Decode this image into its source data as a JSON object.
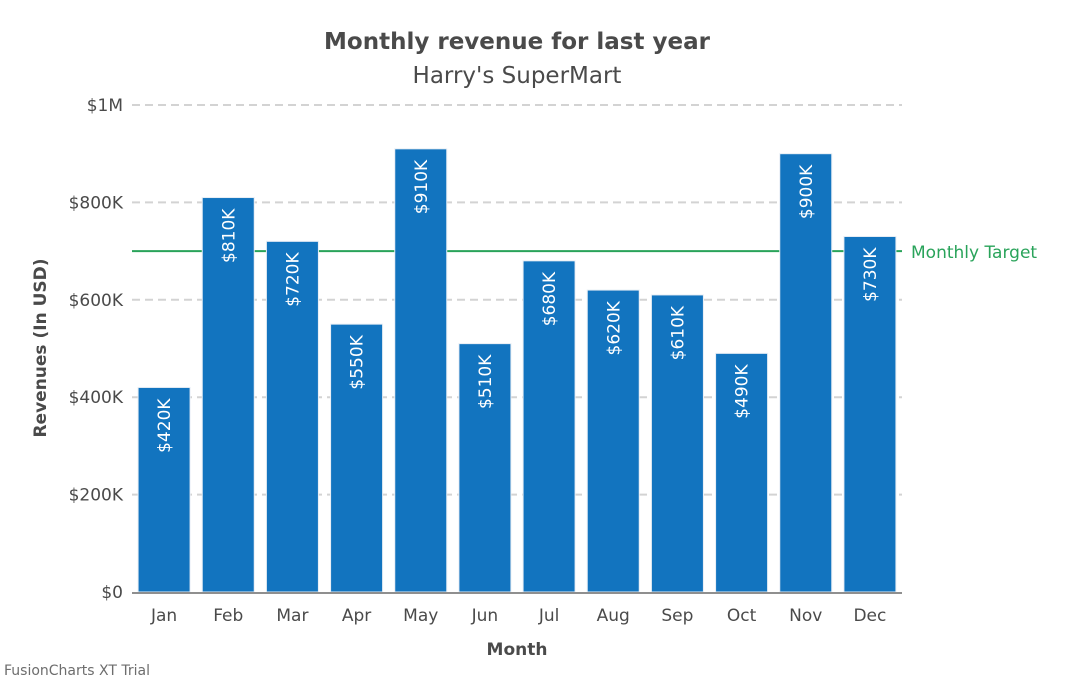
{
  "chart_data": {
    "type": "bar",
    "title": "Monthly revenue for last year",
    "subtitle": "Harry's SuperMart",
    "xlabel": "Month",
    "ylabel": "Revenues (In USD)",
    "categories": [
      "Jan",
      "Feb",
      "Mar",
      "Apr",
      "May",
      "Jun",
      "Jul",
      "Aug",
      "Sep",
      "Oct",
      "Nov",
      "Dec"
    ],
    "values": [
      420000,
      810000,
      720000,
      550000,
      910000,
      510000,
      680000,
      620000,
      610000,
      490000,
      900000,
      730000
    ],
    "value_labels": [
      "$420K",
      "$810K",
      "$720K",
      "$550K",
      "$910K",
      "$510K",
      "$680K",
      "$620K",
      "$610K",
      "$490K",
      "$900K",
      "$730K"
    ],
    "ylim": [
      0,
      1000000
    ],
    "y_ticks": [
      0,
      200000,
      400000,
      600000,
      800000,
      1000000
    ],
    "y_tick_labels": [
      "$0",
      "$200K",
      "$400K",
      "$600K",
      "$800K",
      "$1M"
    ],
    "grid": true,
    "trendline": {
      "label": "Monthly Target",
      "value": 700000,
      "color": "#29a35a"
    },
    "bar_color": "#1274bf",
    "grid_color": "#d3d3d3",
    "text_color": "#4a4a4a"
  },
  "footer": {
    "watermark": "FusionCharts XT Trial"
  }
}
